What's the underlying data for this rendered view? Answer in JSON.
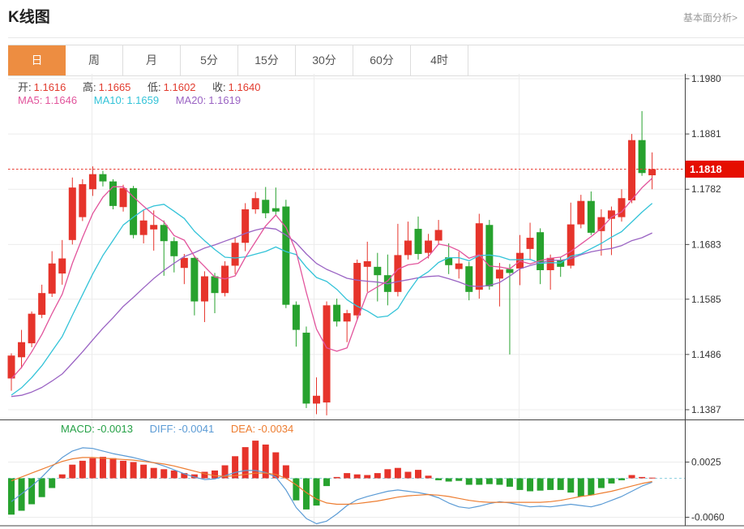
{
  "header": {
    "title": "K线图",
    "link": "基本面分析>"
  },
  "tabs": [
    {
      "label": "日",
      "active": true
    },
    {
      "label": "周",
      "active": false
    },
    {
      "label": "月",
      "active": false
    },
    {
      "label": "5分",
      "active": false
    },
    {
      "label": "15分",
      "active": false
    },
    {
      "label": "30分",
      "active": false
    },
    {
      "label": "60分",
      "active": false
    },
    {
      "label": "4时",
      "active": false
    }
  ],
  "ohlc_legend": {
    "open_label": "开:",
    "open": "1.1616",
    "high_label": "高:",
    "high": "1.1665",
    "low_label": "低:",
    "low": "1.1602",
    "close_label": "收:",
    "close": "1.1640"
  },
  "ma_legend": [
    {
      "label": "MA5:",
      "value": "1.1646"
    },
    {
      "label": "MA10:",
      "value": "1.1659"
    },
    {
      "label": "MA20:",
      "value": "1.1619"
    }
  ],
  "macd_legend": [
    {
      "label": "MACD:",
      "value": "-0.0013"
    },
    {
      "label": "DIFF:",
      "value": "-0.0041"
    },
    {
      "label": "DEA:",
      "value": "-0.0034"
    }
  ],
  "price_badge": "1.1818",
  "colors": {
    "up": "#e6342b",
    "down": "#27a22e",
    "ma5": "#e2549c",
    "ma10": "#33c3d8",
    "ma20": "#9a63c3",
    "diff": "#5b9bd5",
    "dea": "#ed7d31",
    "grid": "#ececec",
    "axis": "#444444",
    "label": "#333333",
    "dotted": "#e8392f",
    "zero_dash": "#8fd0e0",
    "badge_bg": "#e50e00",
    "badge_text": "#ffffff",
    "tab_active_bg": "#ed8d41",
    "link": "#999999"
  },
  "chart_data": {
    "type": "candlestick+macd",
    "main": {
      "ylim": [
        1.1387,
        1.198
      ],
      "yticks": [
        "1.1980",
        "1.1881",
        "1.1782",
        "1.1683",
        "1.1585",
        "1.1486",
        "1.1387"
      ],
      "last_price": 1.1818,
      "ma_windows": [
        5,
        10,
        20
      ],
      "ma_seed_closes": [
        1.148,
        1.1462,
        1.1445,
        1.143,
        1.1417,
        1.1406,
        1.1396,
        1.1388,
        1.1382,
        1.1378,
        1.1376,
        1.1376,
        1.1378,
        1.1382,
        1.1388,
        1.1396,
        1.1406,
        1.142,
        1.144,
        1.1462
      ],
      "candles": [
        [
          1.1443,
          1.1488,
          1.1421,
          1.1484
        ],
        [
          1.1481,
          1.153,
          1.1461,
          1.1508
        ],
        [
          1.1506,
          1.1563,
          1.1499,
          1.1559
        ],
        [
          1.1557,
          1.1611,
          1.1551,
          1.1596
        ],
        [
          1.1595,
          1.1671,
          1.1589,
          1.1649
        ],
        [
          1.1631,
          1.1691,
          1.1611,
          1.1658
        ],
        [
          1.1691,
          1.1803,
          1.1683,
          1.1785
        ],
        [
          1.1732,
          1.18,
          1.1725,
          1.1791
        ],
        [
          1.1782,
          1.1823,
          1.177,
          1.1809
        ],
        [
          1.1809,
          1.1815,
          1.1787,
          1.1796
        ],
        [
          1.1796,
          1.18,
          1.1746,
          1.1752
        ],
        [
          1.175,
          1.179,
          1.1742,
          1.1784
        ],
        [
          1.1784,
          1.1788,
          1.1694,
          1.17
        ],
        [
          1.17,
          1.1744,
          1.1685,
          1.1726
        ],
        [
          1.171,
          1.1744,
          1.1672,
          1.1718
        ],
        [
          1.1718,
          1.1726,
          1.1627,
          1.1689
        ],
        [
          1.1689,
          1.1696,
          1.1633,
          1.1662
        ],
        [
          1.1641,
          1.1666,
          1.1612,
          1.1659
        ],
        [
          1.1659,
          1.1662,
          1.1556,
          1.1581
        ],
        [
          1.1581,
          1.1635,
          1.1544,
          1.1626
        ],
        [
          1.1626,
          1.1632,
          1.156,
          1.1596
        ],
        [
          1.1596,
          1.1653,
          1.159,
          1.1645
        ],
        [
          1.1645,
          1.1695,
          1.163,
          1.1686
        ],
        [
          1.1686,
          1.1757,
          1.1671,
          1.1746
        ],
        [
          1.1746,
          1.1777,
          1.1738,
          1.1766
        ],
        [
          1.1763,
          1.1786,
          1.173,
          1.1739
        ],
        [
          1.1748,
          1.1785,
          1.1736,
          1.1742
        ],
        [
          1.1751,
          1.1763,
          1.1569,
          1.1575
        ],
        [
          1.1575,
          1.1581,
          1.15,
          1.153
        ],
        [
          1.1525,
          1.1536,
          1.139,
          1.1398
        ],
        [
          1.1398,
          1.1445,
          1.1379,
          1.1412
        ],
        [
          1.14,
          1.1581,
          1.1377,
          1.1574
        ],
        [
          1.1575,
          1.1586,
          1.1536,
          1.1545
        ],
        [
          1.1545,
          1.1566,
          1.1508,
          1.156
        ],
        [
          1.1556,
          1.1656,
          1.1548,
          1.165
        ],
        [
          1.1643,
          1.1688,
          1.1598,
          1.1653
        ],
        [
          1.1643,
          1.1668,
          1.1581,
          1.1628
        ],
        [
          1.1628,
          1.1665,
          1.1574,
          1.1598
        ],
        [
          1.1598,
          1.172,
          1.159,
          1.1664
        ],
        [
          1.1664,
          1.1724,
          1.1656,
          1.169
        ],
        [
          1.1711,
          1.1733,
          1.1656,
          1.1666
        ],
        [
          1.1668,
          1.1702,
          1.1658,
          1.169
        ],
        [
          1.169,
          1.1727,
          1.1682,
          1.1709
        ],
        [
          1.166,
          1.1685,
          1.163,
          1.1646
        ],
        [
          1.1639,
          1.167,
          1.1622,
          1.1649
        ],
        [
          1.1644,
          1.1652,
          1.1583,
          1.1598
        ],
        [
          1.1602,
          1.1738,
          1.1586,
          1.1721
        ],
        [
          1.1718,
          1.1727,
          1.1602,
          1.1608
        ],
        [
          1.1622,
          1.165,
          1.1572,
          1.1638
        ],
        [
          1.1639,
          1.1648,
          1.1486,
          1.1632
        ],
        [
          1.164,
          1.17,
          1.161,
          1.1668
        ],
        [
          1.1675,
          1.1722,
          1.1655,
          1.1695
        ],
        [
          1.1705,
          1.1712,
          1.1612,
          1.1637
        ],
        [
          1.1637,
          1.1665,
          1.1602,
          1.1659
        ],
        [
          1.1655,
          1.166,
          1.1625,
          1.1643
        ],
        [
          1.1645,
          1.1758,
          1.164,
          1.1719
        ],
        [
          1.1719,
          1.1772,
          1.1712,
          1.1761
        ],
        [
          1.1761,
          1.1778,
          1.17,
          1.1704
        ],
        [
          1.1707,
          1.1746,
          1.1663,
          1.1732
        ],
        [
          1.1729,
          1.1751,
          1.1664,
          1.1744
        ],
        [
          1.1732,
          1.1782,
          1.1724,
          1.1766
        ],
        [
          1.1762,
          1.1881,
          1.1757,
          1.187
        ],
        [
          1.187,
          1.1922,
          1.1806,
          1.1811
        ],
        [
          1.1807,
          1.1848,
          1.1782,
          1.1818
        ]
      ]
    },
    "macd": {
      "ylim": [
        -0.007,
        0.006
      ],
      "yticks": [
        "0.0025",
        "-0.0060"
      ],
      "hist": [
        -0.0056,
        -0.005,
        -0.004,
        -0.0029,
        -0.0015,
        0.0006,
        0.0021,
        0.0027,
        0.0031,
        0.0033,
        0.0031,
        0.0027,
        0.0025,
        0.0021,
        0.0016,
        0.0014,
        0.0012,
        0.0008,
        0.0006,
        0.001,
        0.0012,
        0.002,
        0.0034,
        0.0048,
        0.0058,
        0.0052,
        0.004,
        0.002,
        -0.0034,
        -0.0048,
        -0.0042,
        -0.0012,
        0.0002,
        0.0008,
        0.0006,
        0.0005,
        0.0008,
        0.0014,
        0.0016,
        0.001,
        0.0013,
        0.0004,
        -0.0003,
        -0.0005,
        -0.0004,
        -0.001,
        -0.001,
        -0.0009,
        -0.001,
        -0.0013,
        -0.0018,
        -0.002,
        -0.0019,
        -0.0018,
        -0.0018,
        -0.0022,
        -0.0028,
        -0.0026,
        -0.0015,
        -0.0008,
        -0.0003,
        0.0005,
        0.0002,
        0.0001
      ],
      "diff": [
        -0.0036,
        -0.0024,
        -0.0012,
        0.0002,
        0.0018,
        0.0032,
        0.0042,
        0.0047,
        0.0046,
        0.0042,
        0.0038,
        0.0035,
        0.0032,
        0.0028,
        0.0024,
        0.0019,
        0.0013,
        0.0007,
        0.0002,
        -0.0002,
        -0.0001,
        0.0004,
        0.0009,
        0.0012,
        0.0012,
        0.0009,
        0.0002,
        -0.0018,
        -0.0045,
        -0.0062,
        -0.007,
        -0.0066,
        -0.0055,
        -0.0042,
        -0.0033,
        -0.0028,
        -0.0024,
        -0.002,
        -0.0018,
        -0.002,
        -0.0022,
        -0.0025,
        -0.003,
        -0.0038,
        -0.0044,
        -0.0046,
        -0.0043,
        -0.0039,
        -0.0036,
        -0.0038,
        -0.0041,
        -0.0044,
        -0.0043,
        -0.0044,
        -0.0042,
        -0.004,
        -0.0042,
        -0.0044,
        -0.004,
        -0.0034,
        -0.0028,
        -0.002,
        -0.0012,
        -0.0006
      ],
      "dea": [
        -0.0004,
        0.0002,
        0.0008,
        0.0014,
        0.002,
        0.0026,
        0.003,
        0.0032,
        0.0032,
        0.0031,
        0.003,
        0.0029,
        0.0028,
        0.0026,
        0.0024,
        0.0022,
        0.0019,
        0.0015,
        0.0011,
        0.0007,
        0.0004,
        0.0003,
        0.0004,
        0.0006,
        0.0008,
        0.0008,
        0.0006,
        0.0,
        -0.001,
        -0.0022,
        -0.0032,
        -0.0038,
        -0.004,
        -0.004,
        -0.0039,
        -0.0037,
        -0.0035,
        -0.0032,
        -0.0029,
        -0.0027,
        -0.0026,
        -0.0025,
        -0.0026,
        -0.0028,
        -0.0031,
        -0.0034,
        -0.0036,
        -0.0037,
        -0.0037,
        -0.0037,
        -0.0037,
        -0.0037,
        -0.0037,
        -0.0036,
        -0.0034,
        -0.0031,
        -0.0028,
        -0.0026,
        -0.0023,
        -0.002,
        -0.0016,
        -0.0012,
        -0.0008,
        -0.0005
      ]
    }
  }
}
